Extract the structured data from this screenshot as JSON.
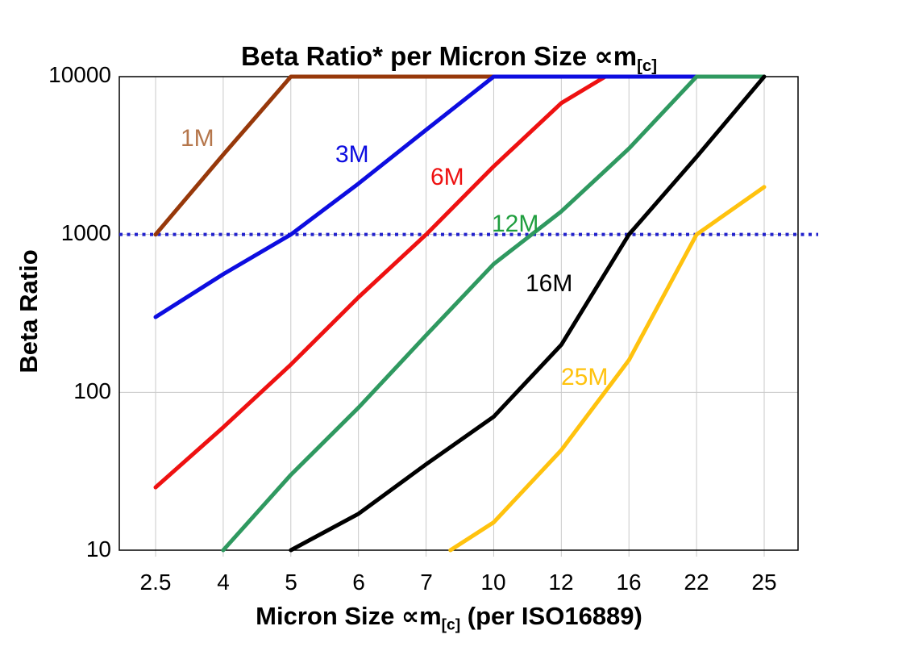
{
  "chart_data": {
    "type": "line",
    "title": {
      "prefix": "Beta Ratio* per Micron Size ",
      "symbol": "∝m",
      "subscript": "[c]"
    },
    "x_axis": {
      "label_prefix": "Micron Size ",
      "label_symbol": "∝m",
      "label_subscript": "[c]",
      "label_suffix": " (per ISO16889)",
      "tick_labels": [
        "2.5",
        "4",
        "5",
        "6",
        "7",
        "10",
        "12",
        "16",
        "22",
        "25"
      ]
    },
    "y_axis": {
      "label": "Beta Ratio",
      "scale": "log",
      "range": [
        10,
        10000
      ],
      "tick_labels": [
        "10000",
        "1000",
        "100",
        "10"
      ]
    },
    "reference_line": {
      "value": 1000,
      "style": "dotted",
      "color": "#2222CC"
    },
    "gridline_color": "#C9C9C9",
    "frame_color": "#000000",
    "categories": [
      2.5,
      4,
      5,
      6,
      7,
      10,
      12,
      16,
      22,
      25
    ],
    "series": [
      {
        "name": "1M",
        "color": "#97380A",
        "label_color": "#B5764B",
        "values": [
          1000,
          3200,
          10000,
          10000,
          10000,
          10000,
          null,
          null,
          null,
          null
        ]
      },
      {
        "name": "6M",
        "color": "#EE1111",
        "values": [
          25,
          60,
          150,
          400,
          1000,
          2700,
          6800,
          null,
          null,
          null
        ],
        "exit_point": {
          "x_index": 6.65,
          "value": 10000
        }
      },
      {
        "name": "3M",
        "color": "#0D0DE0",
        "values": [
          300,
          560,
          1000,
          2100,
          4600,
          10000,
          10000,
          10000,
          10000,
          null
        ]
      },
      {
        "name": "12M",
        "color": "#2F9960",
        "label_color": "#1F9E3E",
        "values": [
          null,
          10,
          30,
          80,
          230,
          650,
          1400,
          3500,
          10000,
          10000
        ]
      },
      {
        "name": "16M",
        "color": "#000000",
        "values": [
          null,
          null,
          10,
          17,
          35,
          70,
          200,
          1000,
          3100,
          10000
        ]
      },
      {
        "name": "25M",
        "color": "#FFC20E",
        "values": [
          null,
          null,
          null,
          null,
          null,
          15,
          43,
          160,
          1000,
          2000
        ],
        "entry_point": {
          "x_index": 4.36,
          "value": 10
        }
      }
    ]
  }
}
